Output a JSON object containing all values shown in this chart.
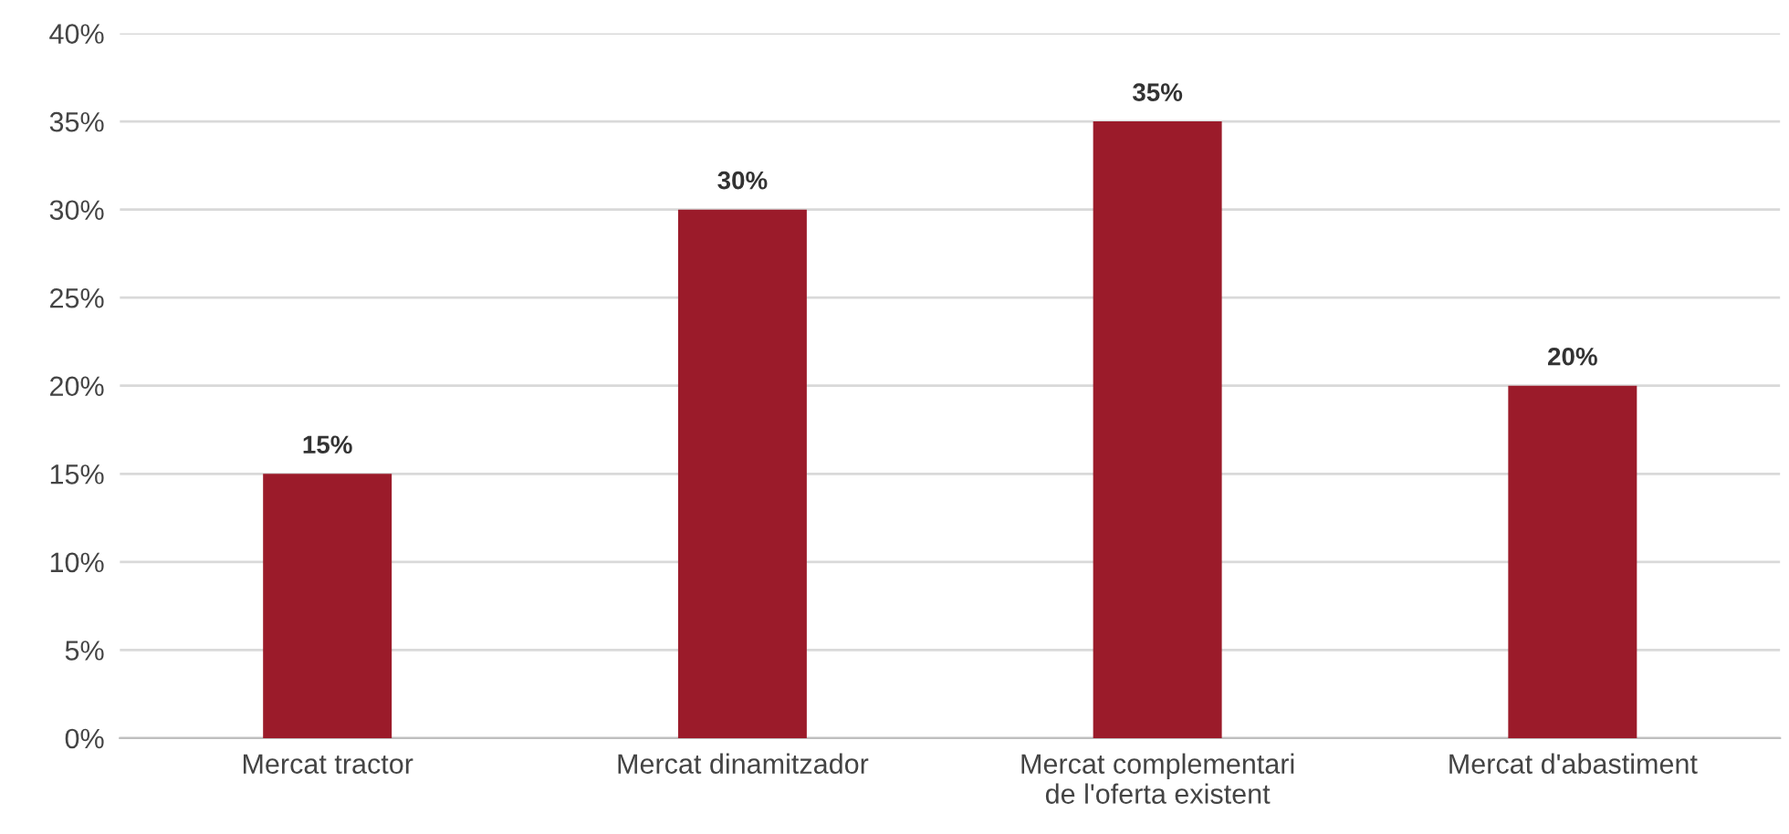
{
  "chart_data": {
    "type": "bar",
    "categories": [
      "Mercat tractor",
      "Mercat dinamitzador",
      "Mercat complementari de l'oferta existent",
      "Mercat d'abastiment"
    ],
    "values": [
      15,
      30,
      35,
      20
    ],
    "value_labels": [
      "15%",
      "30%",
      "35%",
      "20%"
    ],
    "color": "#9b1b2a",
    "ylim": [
      0,
      40
    ],
    "yticks": [
      {
        "value": 0,
        "label": "0%"
      },
      {
        "value": 5,
        "label": "5%"
      },
      {
        "value": 10,
        "label": "10%"
      },
      {
        "value": 15,
        "label": "15%"
      },
      {
        "value": 20,
        "label": "20%"
      },
      {
        "value": 25,
        "label": "25%"
      },
      {
        "value": 30,
        "label": "30%"
      },
      {
        "value": 35,
        "label": "35%"
      },
      {
        "value": 40,
        "label": "40%"
      }
    ],
    "grid": "y"
  }
}
